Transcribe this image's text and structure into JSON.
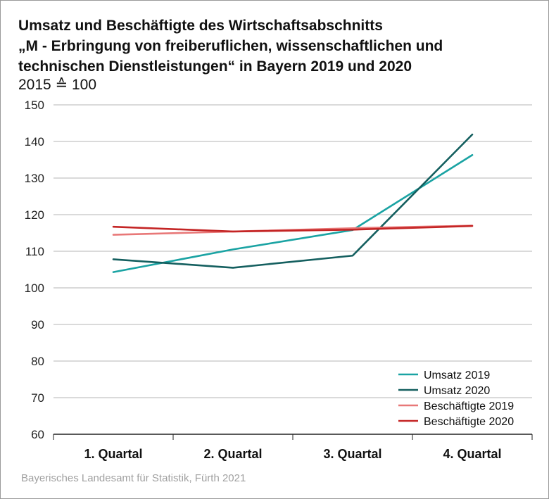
{
  "header": {
    "title_lines": [
      "Umsatz und Beschäftigte des Wirtschaftsabschnitts",
      "„M - Erbringung von freiberuflichen, wissenschaftlichen und",
      "technischen Dienstleistungen“ in Bayern 2019 und 2020"
    ],
    "subtitle": "2015 ≙ 100"
  },
  "footer": {
    "source": "Bayerisches Landesamt für Statistik, Fürth 2021"
  },
  "chart_data": {
    "type": "line",
    "categories": [
      "1. Quartal",
      "2. Quartal",
      "3. Quartal",
      "4. Quartal"
    ],
    "ylim": [
      60,
      150
    ],
    "yticks": [
      60,
      70,
      80,
      90,
      100,
      110,
      120,
      130,
      140,
      150
    ],
    "grid": true,
    "legend_position": "bottom-right",
    "series": [
      {
        "name": "Umsatz 2019",
        "color": "#1aa3a3",
        "values": [
          104.3,
          110.5,
          115.8,
          136.3
        ]
      },
      {
        "name": "Umsatz 2020",
        "color": "#145f5f",
        "values": [
          107.8,
          105.5,
          108.8,
          141.9
        ]
      },
      {
        "name": "Beschäftigte 2019",
        "color": "#e87878",
        "values": [
          114.5,
          115.4,
          116.3,
          117.0
        ]
      },
      {
        "name": "Beschäftigte 2020",
        "color": "#c42525",
        "values": [
          116.7,
          115.4,
          115.9,
          116.9
        ]
      }
    ]
  }
}
